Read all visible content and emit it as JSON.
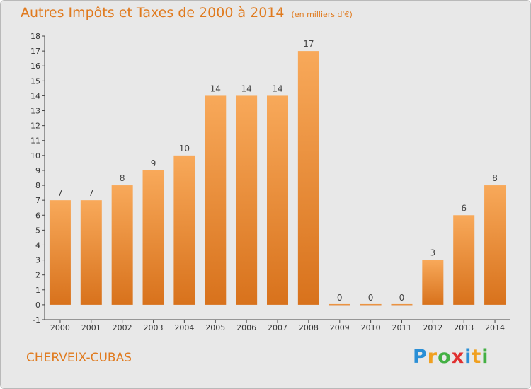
{
  "chart_data": {
    "type": "bar",
    "title": "Autres Impôts et Taxes de 2000 à 2014",
    "subtitle": "(en milliers d'€)",
    "categories": [
      "2000",
      "2001",
      "2002",
      "2003",
      "2004",
      "2005",
      "2006",
      "2007",
      "2008",
      "2009",
      "2010",
      "2011",
      "2012",
      "2013",
      "2014"
    ],
    "values": [
      7,
      7,
      8,
      9,
      10,
      14,
      14,
      14,
      17,
      0,
      0,
      0,
      3,
      6,
      8
    ],
    "value_labels": [
      "7",
      "7",
      "8",
      "9",
      "10",
      "14",
      "14",
      "14",
      "17",
      "0",
      "0",
      "0",
      "3",
      "6",
      "8"
    ],
    "ylim": [
      -1,
      18
    ],
    "yticks": [
      "-1",
      "0",
      "1",
      "2",
      "3",
      "4",
      "5",
      "6",
      "7",
      "8",
      "9",
      "10",
      "11",
      "12",
      "13",
      "14",
      "15",
      "16",
      "17",
      "18"
    ],
    "grid": false,
    "legend": "none",
    "bar_color": "#f08a2a"
  },
  "footer": {
    "commune": "CHERVEIX-CUBAS",
    "logo_letters": [
      "P",
      "r",
      "o",
      "x",
      "i",
      "t",
      "i"
    ],
    "logo_colors": [
      "#2a8fd6",
      "#f0a020",
      "#43b043",
      "#e03030",
      "#2a8fd6",
      "#f0a020",
      "#43b043"
    ]
  }
}
